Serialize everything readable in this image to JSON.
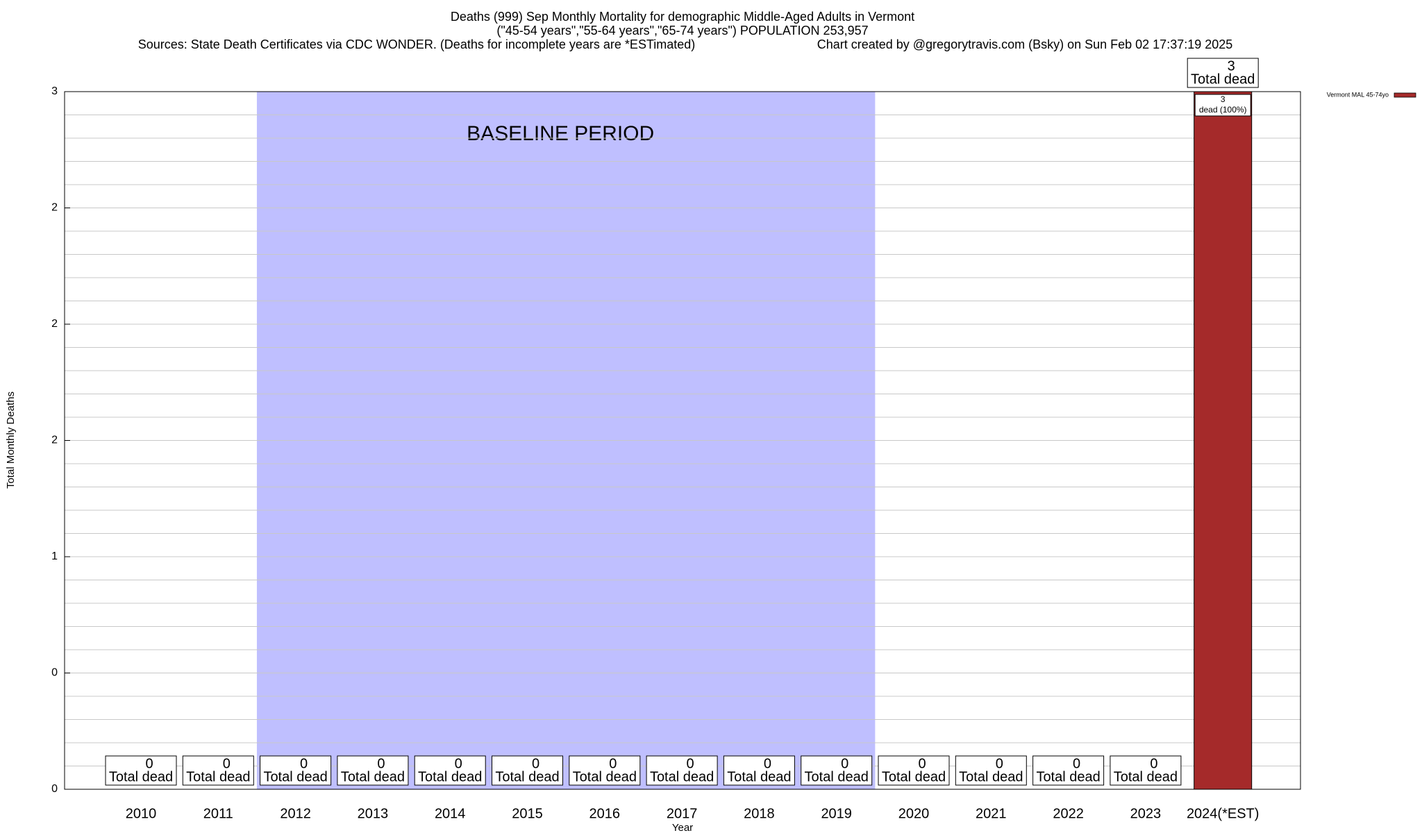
{
  "chart_data": {
    "type": "bar",
    "title": "Deaths (999) Sep Monthly Mortality for demographic Middle-Aged Adults in Vermont",
    "subtitle": "(\"45-54 years\",\"55-64 years\",\"65-74 years\") POPULATION 253,957",
    "source": "Sources: State Death Certificates via CDC WONDER. (Deaths for incomplete years are *ESTimated)",
    "credit": "Chart created by @gregorytravis.com (Bsky) on Sun Feb 02 17:37:19 2025",
    "x_label": "Year",
    "y_label": "Total Monthly Deaths",
    "categories": [
      "2010",
      "2011",
      "2012",
      "2013",
      "2014",
      "2015",
      "2016",
      "2017",
      "2018",
      "2019",
      "2020",
      "2021",
      "2022",
      "2023",
      "2024(*EST)"
    ],
    "series": [
      {
        "name": "Vermont MAL 45-74yo",
        "color": "#a52a2a",
        "values": [
          0,
          0,
          0,
          0,
          0,
          0,
          0,
          0,
          0,
          0,
          0,
          0,
          0,
          0,
          3
        ]
      }
    ],
    "bar_label_text": "Total dead",
    "inner_label_text": "dead (100%)",
    "baseline_period": {
      "label": "BASELINE PERIOD",
      "start": "2012",
      "end": "2019",
      "color": "#bfbfff"
    },
    "ylim": [
      0,
      3
    ],
    "yticks": [
      0,
      {
        "value": 0.5,
        "label": "0"
      },
      1,
      {
        "value": 1.5,
        "label": "2"
      },
      2,
      {
        "value": 2.5,
        "label": "2"
      },
      3
    ],
    "grid": true,
    "legend": "top-right"
  }
}
